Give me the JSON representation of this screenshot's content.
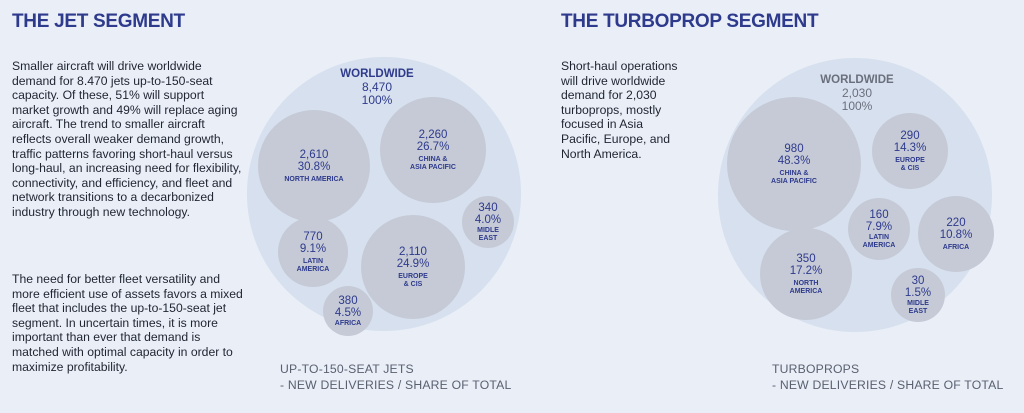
{
  "jet": {
    "title": "THE JET SEGMENT",
    "paragraph1": "Smaller aircraft will drive worldwide demand for  8.470 jets up-to-150-seat capacity. Of these, 51% will support market growth and 49% will replace aging aircraft. The trend to smaller aircraft reflects overall weaker demand growth, traffic patterns favoring short-haul versus long-haul, an increasing need for flexibility, connectivity, and efficiency, and fleet and network transitions to a decarbonized industry through new technology.",
    "paragraph2": "The need for better fleet versatility and more efficient use of assets favors a mixed fleet that includes the up-to-150-seat jet segment. In uncertain times, it is more important than ever that demand is matched with optimal capacity in order to maximize profitability.",
    "worldwide": {
      "label": "WORLDWIDE",
      "value": "8,470",
      "share": "100%"
    },
    "regions": [
      {
        "value": "2,610",
        "share": "30.8%",
        "label1": "NORTH AMERICA",
        "label2": ""
      },
      {
        "value": "2,260",
        "share": "26.7%",
        "label1": "CHINA &",
        "label2": "ASIA PACIFIC"
      },
      {
        "value": "770",
        "share": "9.1%",
        "label1": "LATIN",
        "label2": "AMERICA"
      },
      {
        "value": "2,110",
        "share": "24.9%",
        "label1": "EUROPE",
        "label2": "& CIS"
      },
      {
        "value": "340",
        "share": "4.0%",
        "label1": "MIDLE",
        "label2": "EAST"
      },
      {
        "value": "380",
        "share": "4.5%",
        "label1": "AFRICA",
        "label2": ""
      }
    ],
    "caption1": "UP-TO-150-SEAT JETS",
    "caption2": "- NEW DELIVERIES / SHARE OF TOTAL"
  },
  "turboprop": {
    "title": "THE TURBOPROP SEGMENT",
    "paragraph1": "Short-haul operations will drive worldwide demand for 2,030 turboprops, mostly focused in Asia Pacific, Europe, and North America.",
    "worldwide": {
      "label": "WORLDWIDE",
      "value": "2,030",
      "share": "100%"
    },
    "regions": [
      {
        "value": "980",
        "share": "48.3%",
        "label1": "CHINA &",
        "label2": "ASIA PACIFIC"
      },
      {
        "value": "290",
        "share": "14.3%",
        "label1": "EUROPE",
        "label2": "& CIS"
      },
      {
        "value": "160",
        "share": "7.9%",
        "label1": "LATIN",
        "label2": "AMERICA"
      },
      {
        "value": "220",
        "share": "10.8%",
        "label1": "AFRICA",
        "label2": ""
      },
      {
        "value": "350",
        "share": "17.2%",
        "label1": "NORTH",
        "label2": "AMERICA"
      },
      {
        "value": "30",
        "share": "1.5%",
        "label1": "MIDLE",
        "label2": "EAST"
      }
    ],
    "caption1": "TURBOPROPS",
    "caption2": "- NEW DELIVERIES / SHARE OF TOTAL"
  },
  "colors": {
    "accent": "#2e3a8c",
    "outer_circle": "#d7e0ee",
    "inner_circle": "#c5cad6",
    "background": "#e9eef7"
  }
}
